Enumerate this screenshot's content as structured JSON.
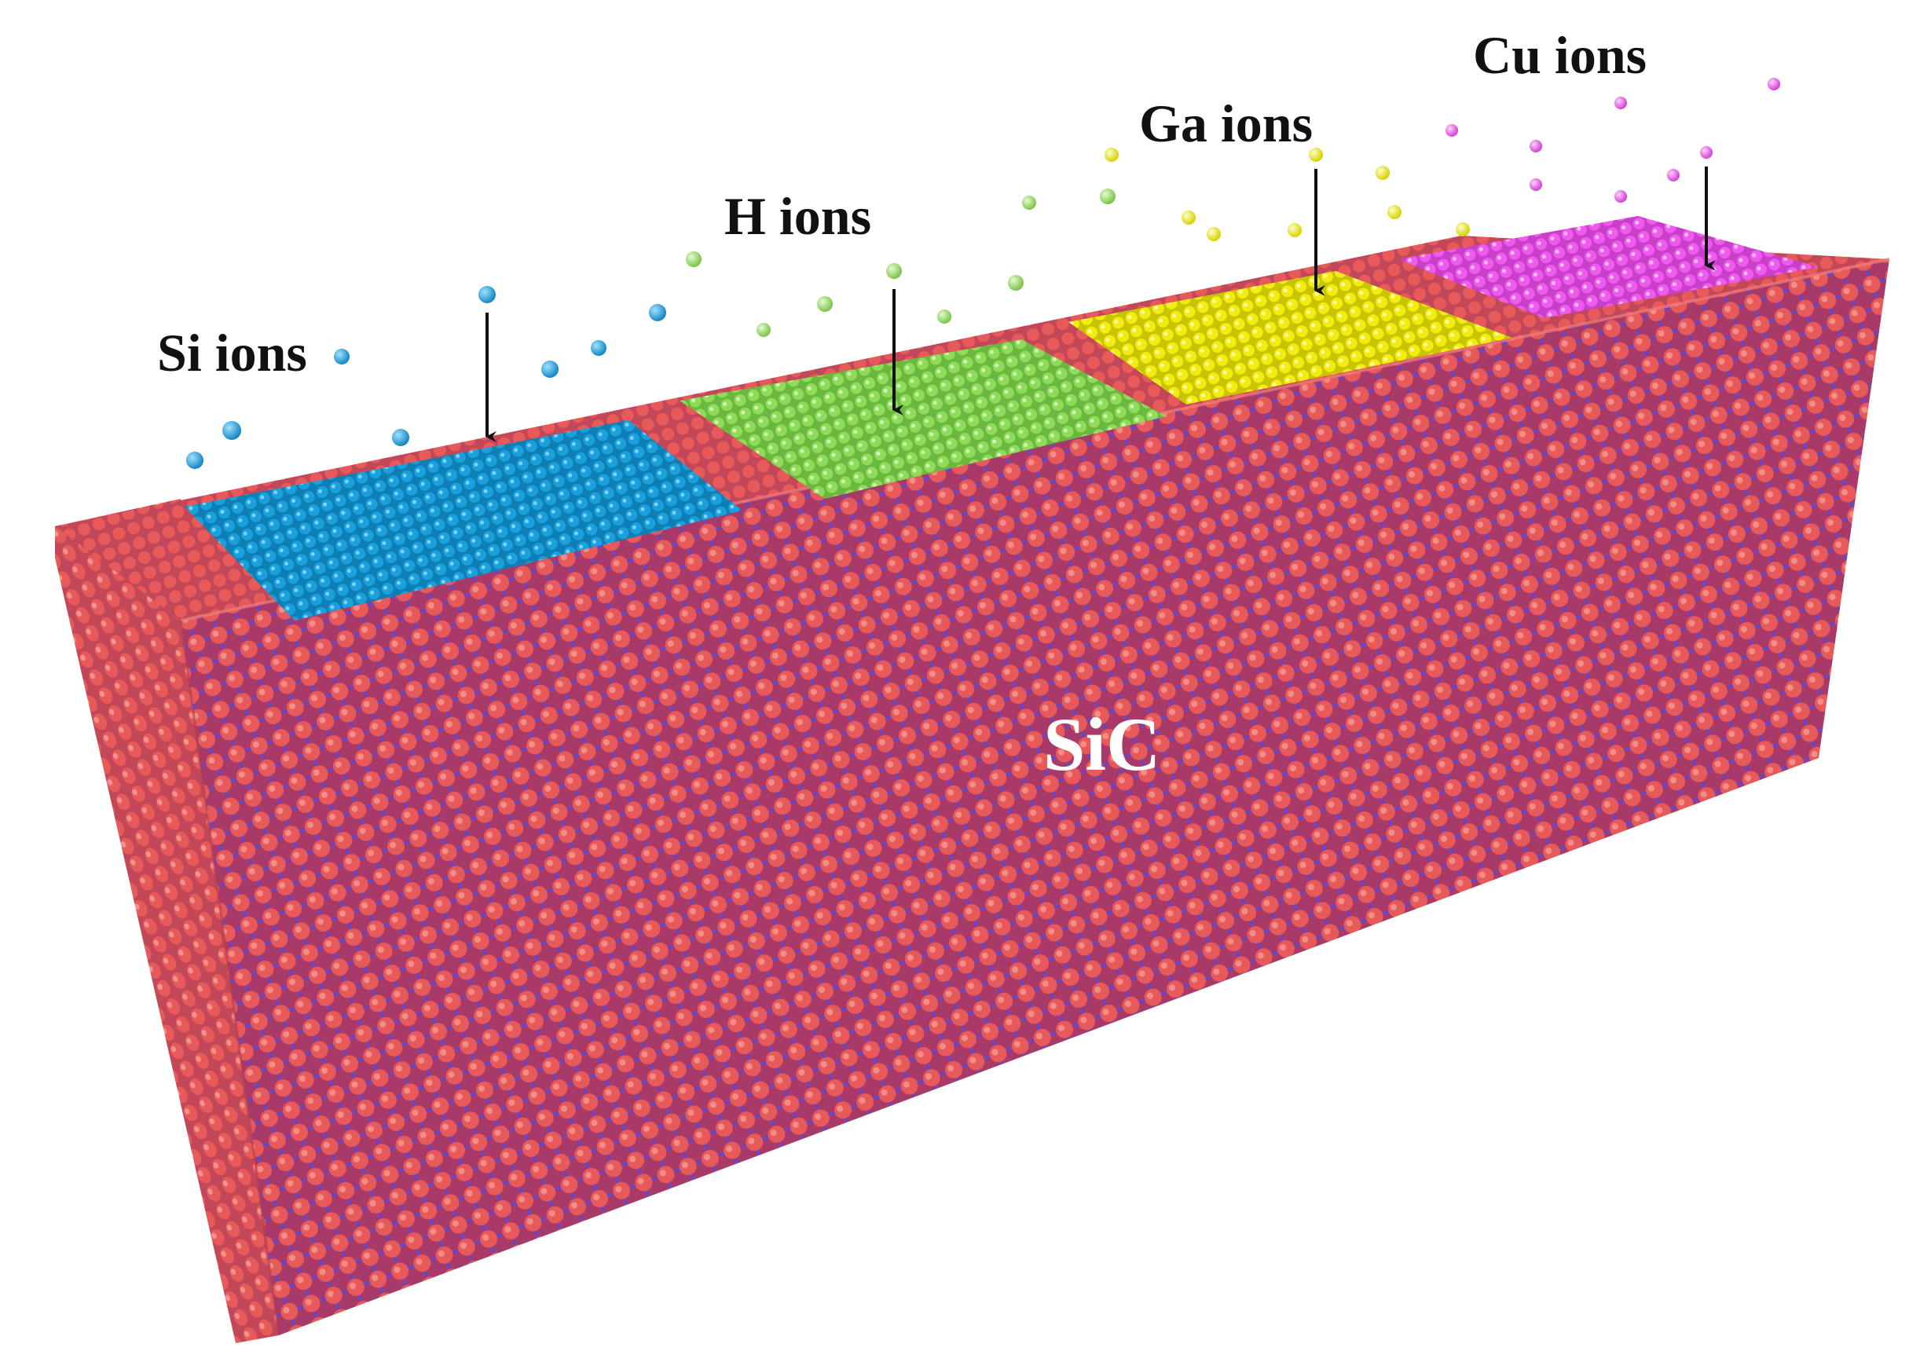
{
  "substrate": {
    "label": "SiC",
    "atom_color": "#e85a5a",
    "bond_color": "#5a4ad6",
    "face_color": "#c9475a",
    "side_color": "#d8515a"
  },
  "regions": [
    {
      "id": "si",
      "label": "Si ions",
      "color": "#1aa0dc",
      "highlight": "#7fd3f5"
    },
    {
      "id": "h",
      "label": "H ions",
      "color": "#8fdc5a",
      "highlight": "#d4f7b5"
    },
    {
      "id": "ga",
      "label": "Ga ions",
      "color": "#f2ec10",
      "highlight": "#fffbb0"
    },
    {
      "id": "cu",
      "label": "Cu ions",
      "color": "#ef5aef",
      "highlight": "#ffc2ff"
    }
  ]
}
